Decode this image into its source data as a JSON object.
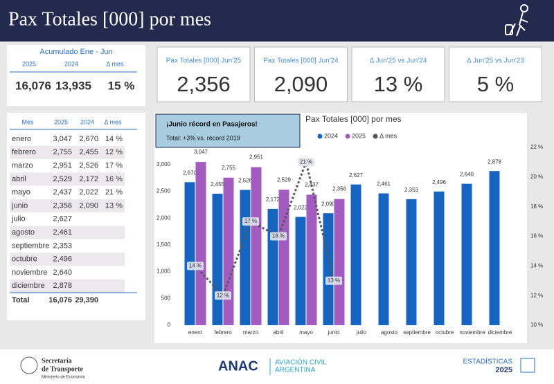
{
  "header": {
    "title": "Pax Totales [000] por mes"
  },
  "summary": {
    "title": "Acumulado Ene - Jun",
    "headers": [
      "2025",
      "2024",
      "Δ mes"
    ],
    "values": [
      "16,076",
      "13,935",
      "15 %"
    ]
  },
  "kpis": [
    {
      "label": "Pax Totales [000] Jun'25",
      "value": "2,356"
    },
    {
      "label": "Pax Totales [000] Jun'24",
      "value": "2,090"
    },
    {
      "label": "Δ Jun'25 vs Jun'24",
      "value": "13 %"
    },
    {
      "label": "Δ Jun'25 vs Jun'23",
      "value": "5 %"
    }
  ],
  "table": {
    "headers": [
      "Mes",
      "2025",
      "2024",
      "Δ mes"
    ],
    "rows": [
      [
        "enero",
        "3,047",
        "2,670",
        "14 %"
      ],
      [
        "febrero",
        "2,755",
        "2,455",
        "12 %"
      ],
      [
        "marzo",
        "2,951",
        "2,526",
        "17 %"
      ],
      [
        "abril",
        "2,529",
        "2,172",
        "16 %"
      ],
      [
        "mayo",
        "2,437",
        "2,022",
        "21 %"
      ],
      [
        "junio",
        "2,356",
        "2,090",
        "13 %"
      ],
      [
        "julio",
        "2,627"
      ],
      [
        "agosto",
        "2,461"
      ],
      [
        "septiembre",
        "2,353"
      ],
      [
        "octubre",
        "2,496"
      ],
      [
        "noviembre",
        "2,640"
      ],
      [
        "diciembre",
        "2,878"
      ]
    ],
    "total": [
      "Total",
      "16,076",
      "29,390"
    ]
  },
  "chart_data": {
    "type": "bar",
    "title": "Pax Totales [000] por mes",
    "annotation": {
      "title": "¡Junio récord en Pasajeros!",
      "text": "Total: +3% vs. récord 2019"
    },
    "categories": [
      "enero",
      "febrero",
      "marzo",
      "abril",
      "mayo",
      "junio",
      "julio",
      "agosto",
      "septiembre",
      "octubre",
      "noviembre",
      "diciembre"
    ],
    "series": [
      {
        "name": "2024",
        "color": "#1565c0",
        "values": [
          2670,
          2455,
          2526,
          2172,
          2022,
          2090,
          2627,
          2461,
          2353,
          2496,
          2640,
          2878
        ],
        "value_labels": [
          "2,670",
          "2,455",
          "2,526",
          "2,172",
          "2,022",
          "2,090",
          "2,627",
          "2,461",
          "2,353",
          "2,496",
          "2,640",
          "2,878"
        ]
      },
      {
        "name": "2025",
        "color": "#a25bbf",
        "values": [
          3047,
          2755,
          2951,
          2529,
          2437,
          2356,
          null,
          null,
          null,
          null,
          null,
          null
        ],
        "value_labels": [
          "3,047",
          "2,755",
          "2,951",
          "2,529",
          "2,437",
          "2,356",
          null,
          null,
          null,
          null,
          null,
          null
        ]
      },
      {
        "name": "Δ mes",
        "color": "#555555",
        "type": "line",
        "axis": "y2",
        "values": [
          14,
          12,
          17,
          16,
          21,
          13,
          null,
          null,
          null,
          null,
          null,
          null
        ],
        "value_labels": [
          "14 %",
          "12 %",
          "17 %",
          "16 %",
          "21 %",
          "13 %",
          null,
          null,
          null,
          null,
          null,
          null
        ]
      }
    ],
    "ylim": [
      0,
      3320
    ],
    "yticks": [
      0,
      500,
      {
        "value": 1000,
        "label": "1,000"
      },
      {
        "value": 1500,
        "label": "1,500"
      },
      {
        "value": 2000,
        "label": "2,000"
      },
      {
        "value": 2500,
        "label": "2,500"
      },
      {
        "value": 3000,
        "label": "3,000"
      }
    ],
    "y2lim": [
      10,
      22
    ],
    "y2ticks": [
      {
        "value": 10,
        "label": "10 %"
      },
      {
        "value": 12,
        "label": "12 %"
      },
      {
        "value": 14,
        "label": "14 %"
      },
      {
        "value": 16,
        "label": "16 %"
      },
      {
        "value": 18,
        "label": "18 %"
      },
      {
        "value": 20,
        "label": "20 %"
      },
      {
        "value": 22,
        "label": "22 %"
      }
    ]
  },
  "footer": {
    "org": "Secretaría",
    "org2": "de Transporte",
    "ministry": "Ministerio de Economía",
    "brand": "ANAC",
    "brand2": "AVIACIÓN CIVIL",
    "brand3": "ARGENTINA",
    "stats": "ESTADÍSTICAS",
    "year": "2025"
  }
}
